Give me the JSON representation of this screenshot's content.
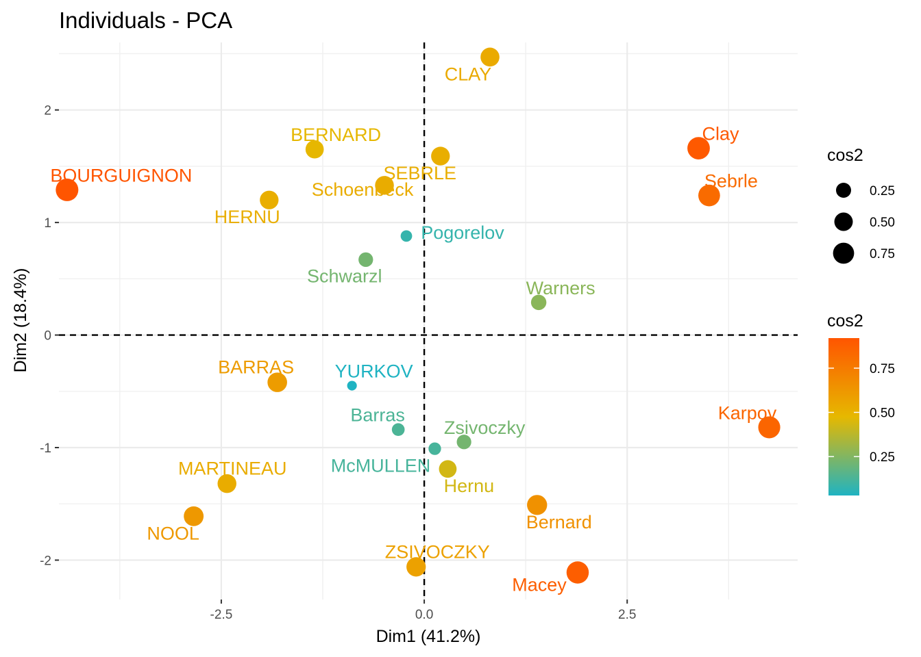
{
  "chart_data": {
    "type": "scatter",
    "title": "Individuals - PCA",
    "xlabel": "Dim1 (41.2%)",
    "ylabel": "Dim2 (18.4%)",
    "xlim": [
      -4.5,
      4.6
    ],
    "ylim": [
      -2.35,
      2.6
    ],
    "x_ticks": [
      -2.5,
      0.0,
      2.5
    ],
    "x_tick_labels": [
      "-2.5",
      "0.0",
      "2.5"
    ],
    "y_ticks": [
      -2,
      -1,
      0,
      1,
      2
    ],
    "y_tick_labels": [
      "-2",
      "-1",
      "0",
      "1",
      "2"
    ],
    "grid": true,
    "reference_lines": {
      "x": 0,
      "y": 0,
      "style": "dashed"
    },
    "color_gradient": [
      "#1fb3c2",
      "#e6b800",
      "#ff5500"
    ],
    "legend_size": {
      "title": "cos2",
      "items": [
        {
          "label": "0.25",
          "value": 0.25
        },
        {
          "label": "0.50",
          "value": 0.5
        },
        {
          "label": "0.75",
          "value": 0.75
        }
      ]
    },
    "legend_color": {
      "title": "cos2",
      "ticks": [
        {
          "label": "0.25",
          "value": 0.25
        },
        {
          "label": "0.50",
          "value": 0.5
        },
        {
          "label": "0.75",
          "value": 0.75
        }
      ]
    },
    "points": [
      {
        "label": "BOURGUIGNON",
        "x": -4.4,
        "y": 1.29,
        "cos2": 0.92
      },
      {
        "label": "BERNARD",
        "x": -1.35,
        "y": 1.65,
        "cos2": 0.48
      },
      {
        "label": "HERNU",
        "x": -1.91,
        "y": 1.2,
        "cos2": 0.52
      },
      {
        "label": "Schoenbeck",
        "x": -0.49,
        "y": 1.33,
        "cos2": 0.53
      },
      {
        "label": "SEBRLE",
        "x": 0.2,
        "y": 1.59,
        "cos2": 0.52
      },
      {
        "label": "CLAY",
        "x": 0.81,
        "y": 2.47,
        "cos2": 0.54
      },
      {
        "label": "Clay",
        "x": 3.38,
        "y": 1.66,
        "cos2": 0.9
      },
      {
        "label": "Sebrle",
        "x": 3.51,
        "y": 1.24,
        "cos2": 0.82
      },
      {
        "label": "Pogorelov",
        "x": -0.22,
        "y": 0.88,
        "cos2": 0.08
      },
      {
        "label": "Schwarzl",
        "x": -0.72,
        "y": 0.67,
        "cos2": 0.22
      },
      {
        "label": "Warners",
        "x": 1.41,
        "y": 0.29,
        "cos2": 0.27
      },
      {
        "label": "BARRAS",
        "x": -1.81,
        "y": -0.42,
        "cos2": 0.6
      },
      {
        "label": "YURKOV",
        "x": -0.89,
        "y": -0.45,
        "cos2": 0.03
      },
      {
        "label": "Barras",
        "x": -0.32,
        "y": -0.84,
        "cos2": 0.13
      },
      {
        "label": "McMULLEN",
        "x": 0.13,
        "y": -1.01,
        "cos2": 0.12
      },
      {
        "label": "Zsivoczky",
        "x": 0.49,
        "y": -0.95,
        "cos2": 0.22
      },
      {
        "label": "Hernu",
        "x": 0.29,
        "y": -1.19,
        "cos2": 0.43
      },
      {
        "label": "MARTINEAU",
        "x": -2.43,
        "y": -1.32,
        "cos2": 0.53
      },
      {
        "label": "NOOL",
        "x": -2.84,
        "y": -1.61,
        "cos2": 0.62
      },
      {
        "label": "ZSIVOCZKY",
        "x": -0.1,
        "y": -2.06,
        "cos2": 0.58
      },
      {
        "label": "Bernard",
        "x": 1.39,
        "y": -1.51,
        "cos2": 0.65
      },
      {
        "label": "Macey",
        "x": 1.89,
        "y": -2.11,
        "cos2": 0.88
      },
      {
        "label": "Karpov",
        "x": 4.25,
        "y": -0.82,
        "cos2": 0.85
      }
    ]
  }
}
